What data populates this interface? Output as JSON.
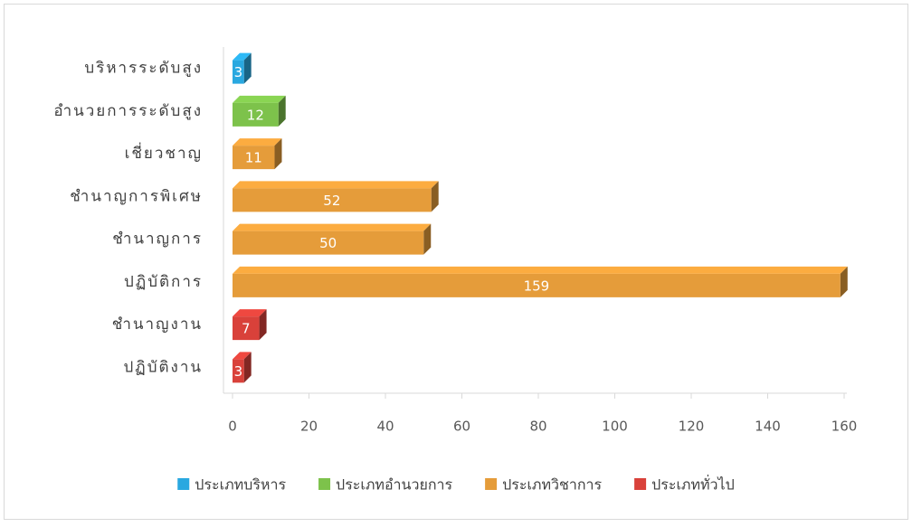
{
  "chart_data": {
    "type": "bar",
    "categories": [
      "บริหารระดับสูง",
      "อำนวยการระดับสูง",
      "เชี่ยวชาญ",
      "ชำนาญการพิเศษ",
      "ชำนาญการ",
      "ปฏิบัติการ",
      "ชำนาญงาน",
      "ปฏิบัติงาน"
    ],
    "series": [
      {
        "name": "ประเภทบริหาร",
        "color": "#29a8e0",
        "values": [
          3,
          null,
          null,
          null,
          null,
          null,
          null,
          null
        ]
      },
      {
        "name": "ประเภทอำนวยการ",
        "color": "#7dc24b",
        "values": [
          null,
          12,
          null,
          null,
          null,
          null,
          null,
          null
        ]
      },
      {
        "name": "ประเภทวิชาการ",
        "color": "#e59c3a",
        "values": [
          null,
          null,
          11,
          52,
          50,
          159,
          null,
          null
        ]
      },
      {
        "name": "ประเภททั่วไป",
        "color": "#d9413a",
        "values": [
          null,
          null,
          null,
          null,
          null,
          null,
          7,
          3
        ]
      }
    ],
    "xlim": [
      0,
      160
    ],
    "xticks": [
      0,
      20,
      40,
      60,
      80,
      100,
      120,
      140,
      160
    ],
    "legend": "bottom"
  }
}
